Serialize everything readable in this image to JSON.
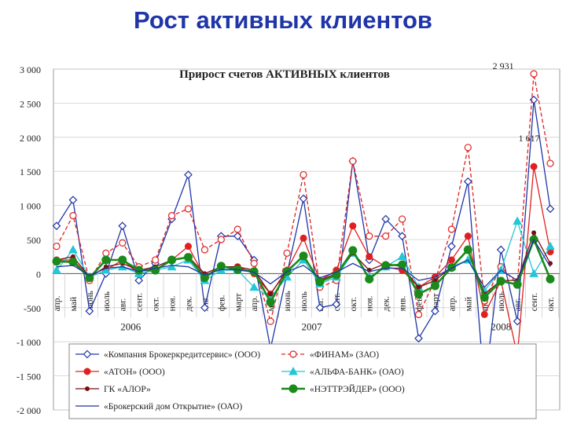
{
  "slide": {
    "title": "Рост активных клиентов"
  },
  "chart_data": {
    "type": "line",
    "title": "Прирост счетов АКТИВНЫХ клиентов",
    "xlabel": "",
    "ylabel": "",
    "ylim": [
      -2000,
      3000
    ],
    "yticks": [
      3000,
      2500,
      2000,
      1500,
      1000,
      500,
      0,
      -500,
      -1000,
      -1500,
      -2000
    ],
    "ytick_labels": [
      "3 000",
      "2 500",
      "2 000",
      "1 500",
      "1 000",
      "500",
      "0",
      "-500",
      "-1 000",
      "-1 500",
      "-2 000"
    ],
    "grid": true,
    "categories": [
      "апр.",
      "май",
      "июнь",
      "июль",
      "авг.",
      "сент.",
      "окт.",
      "ноя.",
      "дек.",
      "янв.",
      "фев.",
      "март",
      "апр.",
      "май",
      "июнь",
      "июль",
      "авг.",
      "сент.",
      "окт.",
      "ноя.",
      "дек.",
      "янв.",
      "фев.",
      "март",
      "апр.",
      "май",
      "июнь",
      "июль",
      "авг.",
      "сент.",
      "окт."
    ],
    "year_labels": [
      {
        "label": "2006",
        "index": 4.5
      },
      {
        "label": "2007",
        "index": 15.5
      },
      {
        "label": "2008",
        "index": 27
      }
    ],
    "annotations": [
      {
        "text": "2 931",
        "index": 28,
        "value": 2931
      },
      {
        "text": "1 617",
        "index": 29,
        "value": 1617
      }
    ],
    "legend_position": "bottom",
    "series": [
      {
        "name": "«Компания Брокеркредитсервис» (ООО)",
        "color": "#1f35a8",
        "marker": "diamond-open",
        "dashed": false,
        "values": [
          700,
          1080,
          -550,
          0,
          700,
          -100,
          150,
          800,
          1450,
          -500,
          550,
          550,
          200,
          -1100,
          0,
          1100,
          -500,
          -450,
          1650,
          200,
          800,
          550,
          -950,
          -550,
          400,
          1350,
          -1700,
          350,
          -700,
          2550,
          950
        ]
      },
      {
        "name": "«ФИНАМ» (ЗАО)",
        "color": "#e02020",
        "marker": "circle-open",
        "dashed": true,
        "values": [
          400,
          850,
          -100,
          300,
          450,
          100,
          200,
          850,
          950,
          350,
          500,
          650,
          150,
          -700,
          300,
          1450,
          -200,
          -100,
          1650,
          550,
          550,
          800,
          -600,
          -100,
          650,
          1850,
          -400,
          100,
          -150,
          2931,
          1617
        ]
      },
      {
        "name": "«АТОН» (ООО)",
        "color": "#e02020",
        "marker": "circle-filled",
        "dashed": false,
        "values": [
          200,
          200,
          -50,
          50,
          200,
          0,
          50,
          200,
          400,
          -50,
          100,
          100,
          0,
          -300,
          50,
          520,
          -100,
          50,
          700,
          250,
          100,
          50,
          -200,
          -50,
          200,
          550,
          -600,
          -100,
          -1200,
          1570,
          320
        ]
      },
      {
        "name": "«АЛЬФА-БАНК» (ОАО)",
        "color": "#22c7d8",
        "marker": "triangle-filled",
        "dashed": false,
        "values": [
          50,
          350,
          -50,
          50,
          100,
          0,
          50,
          100,
          200,
          -100,
          50,
          50,
          -200,
          -350,
          -50,
          200,
          -150,
          -50,
          300,
          -50,
          100,
          250,
          -200,
          -100,
          100,
          200,
          -250,
          50,
          770,
          0,
          400
        ]
      },
      {
        "name": "ГК «АЛОР»",
        "color": "#7a1010",
        "marker": "circle-small",
        "dashed": false,
        "values": [
          200,
          250,
          -50,
          100,
          150,
          50,
          100,
          200,
          250,
          0,
          100,
          100,
          50,
          -300,
          50,
          250,
          -100,
          0,
          300,
          50,
          150,
          100,
          -200,
          -100,
          100,
          350,
          -300,
          -100,
          -100,
          600,
          150
        ]
      },
      {
        "name": "«НЭТТРЭЙДЕР» (ООО)",
        "color": "#1a8a1a",
        "marker": "circle-filled-large",
        "dashed": false,
        "values": [
          180,
          170,
          -60,
          200,
          200,
          50,
          50,
          200,
          240,
          -60,
          110,
          60,
          30,
          -420,
          30,
          260,
          -120,
          -20,
          340,
          -80,
          120,
          130,
          -300,
          -180,
          90,
          350,
          -350,
          -110,
          -160,
          500,
          -80
        ]
      },
      {
        "name": "«Брокерский дом Открытие» (ОАО)",
        "color": "#1f35a8",
        "marker": "none",
        "dashed": false,
        "values": [
          100,
          120,
          -30,
          80,
          100,
          30,
          80,
          120,
          100,
          -20,
          60,
          60,
          20,
          -150,
          30,
          120,
          -60,
          20,
          150,
          30,
          80,
          80,
          -100,
          -50,
          80,
          200,
          -200,
          50,
          -100,
          500,
          100
        ]
      }
    ]
  }
}
